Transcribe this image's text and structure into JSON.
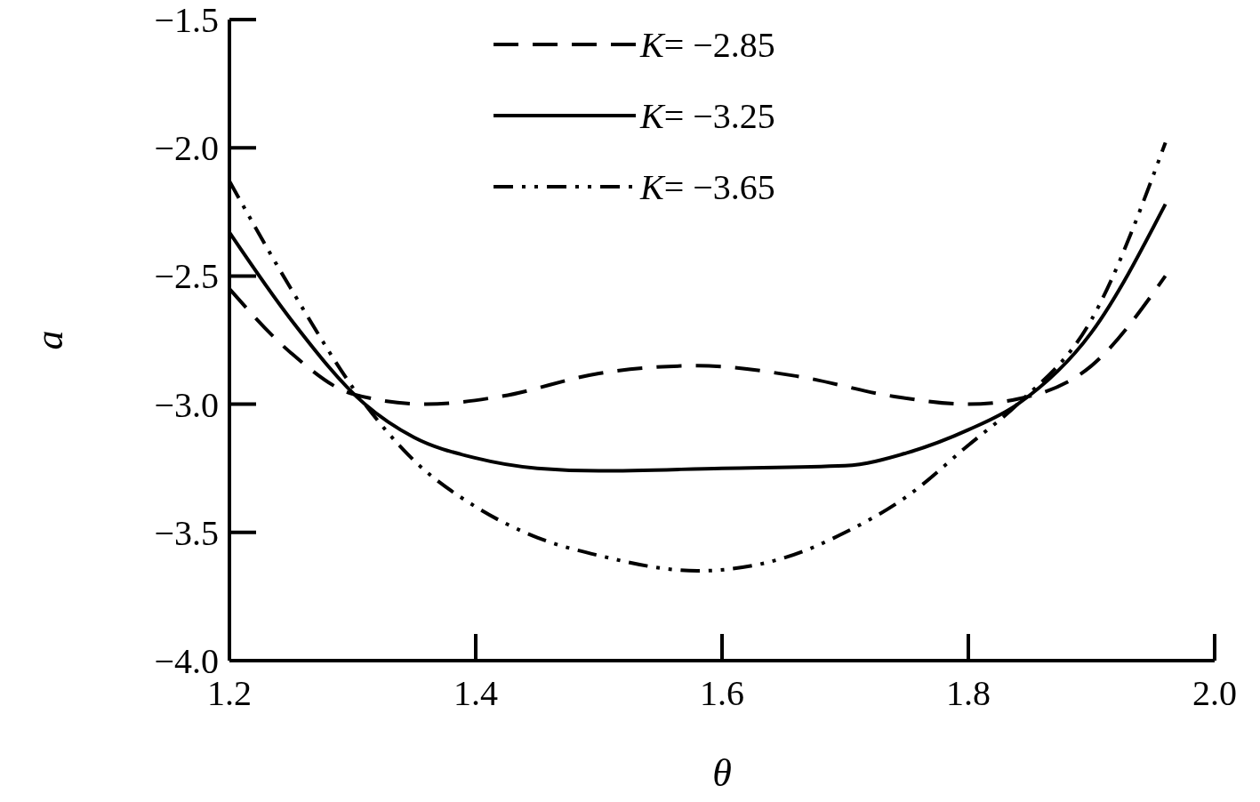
{
  "chart_data": {
    "type": "line",
    "xlabel": "θ",
    "ylabel": "a",
    "xlim": [
      1.2,
      2.0
    ],
    "ylim": [
      -4.0,
      -1.5
    ],
    "xticks": [
      {
        "value": 1.2,
        "label": "1.2"
      },
      {
        "value": 1.4,
        "label": "1.4"
      },
      {
        "value": 1.6,
        "label": "1.6"
      },
      {
        "value": 1.8,
        "label": "1.8"
      },
      {
        "value": 2.0,
        "label": "2.0"
      }
    ],
    "yticks": [
      {
        "value": -4.0,
        "label": "−4.0"
      },
      {
        "value": -3.5,
        "label": "−3.5"
      },
      {
        "value": -3.0,
        "label": "−3.0"
      },
      {
        "value": -2.5,
        "label": "−2.5"
      },
      {
        "value": -2.0,
        "label": "−2.0"
      },
      {
        "value": -1.5,
        "label": "−1.5"
      }
    ],
    "legend": "top",
    "grid": false,
    "series": [
      {
        "name": "K= −2.85",
        "color": "#000000",
        "line_style": "dashed",
        "x": [
          1.2,
          1.25,
          1.3,
          1.36,
          1.42,
          1.5,
          1.58,
          1.66,
          1.74,
          1.8,
          1.84,
          1.9,
          1.96
        ],
        "values": [
          -2.55,
          -2.8,
          -2.96,
          -3.0,
          -2.97,
          -2.88,
          -2.85,
          -2.89,
          -2.97,
          -3.0,
          -2.98,
          -2.85,
          -2.5
        ]
      },
      {
        "name": "K= −3.25",
        "color": "#000000",
        "line_style": "solid",
        "x": [
          1.2,
          1.25,
          1.31,
          1.35,
          1.4,
          1.45,
          1.5,
          1.6,
          1.7,
          1.75,
          1.8,
          1.84,
          1.9,
          1.96
        ],
        "values": [
          -2.33,
          -2.67,
          -3.0,
          -3.13,
          -3.21,
          -3.25,
          -3.26,
          -3.25,
          -3.24,
          -3.19,
          -3.1,
          -3.0,
          -2.72,
          -2.22
        ]
      },
      {
        "name": "K= −3.65",
        "color": "#000000",
        "line_style": "dotted",
        "x": [
          1.2,
          1.25,
          1.31,
          1.35,
          1.4,
          1.45,
          1.5,
          1.58,
          1.65,
          1.7,
          1.75,
          1.8,
          1.84,
          1.9,
          1.96
        ],
        "values": [
          -2.13,
          -2.55,
          -3.0,
          -3.22,
          -3.4,
          -3.52,
          -3.59,
          -3.65,
          -3.6,
          -3.5,
          -3.36,
          -3.16,
          -3.0,
          -2.67,
          -1.98
        ]
      }
    ]
  }
}
